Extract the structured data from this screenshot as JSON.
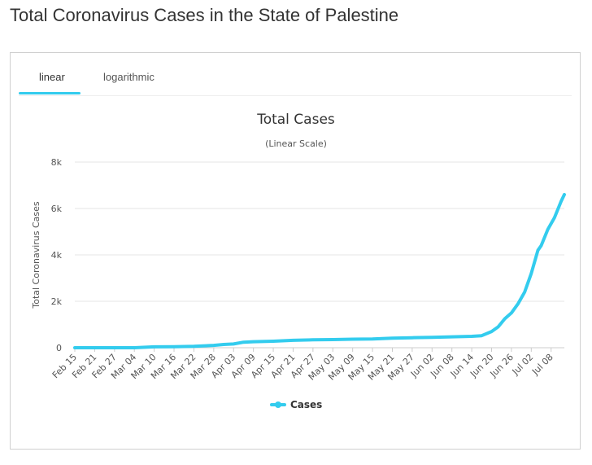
{
  "page": {
    "title": "Total Coronavirus Cases in the State of Palestine"
  },
  "tabs": [
    {
      "label": "linear",
      "active": true
    },
    {
      "label": "logarithmic",
      "active": false
    }
  ],
  "colors": {
    "series": "#33ccee",
    "tab_active": "#33ccee",
    "grid": "#e6e6e6"
  },
  "chart_data": {
    "type": "line",
    "title": "Total Cases",
    "subtitle": "(Linear Scale)",
    "ylabel": "Total Coronavirus Cases",
    "xlabel": "",
    "ylim": [
      0,
      8000
    ],
    "yticks": [
      0,
      2000,
      4000,
      6000,
      8000
    ],
    "ytick_labels": [
      "0",
      "2k",
      "4k",
      "6k",
      "8k"
    ],
    "xtick_labels": [
      "Feb 15",
      "Feb 21",
      "Feb 27",
      "Mar 04",
      "Mar 10",
      "Mar 16",
      "Mar 22",
      "Mar 28",
      "Apr 03",
      "Apr 09",
      "Apr 15",
      "Apr 21",
      "Apr 27",
      "May 03",
      "May 09",
      "May 15",
      "May 21",
      "May 27",
      "Jun 02",
      "Jun 08",
      "Jun 14",
      "Jun 20",
      "Jun 26",
      "Jul 02",
      "Jul 08"
    ],
    "grid": true,
    "legend": "bottom-center",
    "series": [
      {
        "name": "Cases",
        "x": [
          "Feb 15",
          "Feb 21",
          "Feb 27",
          "Mar 04",
          "Mar 10",
          "Mar 16",
          "Mar 22",
          "Mar 28",
          "Mar 31",
          "Apr 03",
          "Apr 06",
          "Apr 09",
          "Apr 15",
          "Apr 21",
          "Apr 27",
          "May 03",
          "May 09",
          "May 15",
          "May 21",
          "May 27",
          "Jun 02",
          "Jun 08",
          "Jun 14",
          "Jun 17",
          "Jun 20",
          "Jun 22",
          "Jun 24",
          "Jun 26",
          "Jun 28",
          "Jun 30",
          "Jul 02",
          "Jul 04",
          "Jul 05",
          "Jul 07",
          "Jul 09",
          "Jul 11",
          "Jul 12"
        ],
        "values": [
          0,
          0,
          0,
          0,
          40,
          45,
          60,
          100,
          140,
          160,
          240,
          260,
          280,
          320,
          340,
          350,
          370,
          375,
          410,
          430,
          450,
          470,
          490,
          520,
          700,
          900,
          1250,
          1500,
          1900,
          2400,
          3200,
          4200,
          4400,
          5100,
          5600,
          6300,
          6600
        ]
      }
    ]
  }
}
